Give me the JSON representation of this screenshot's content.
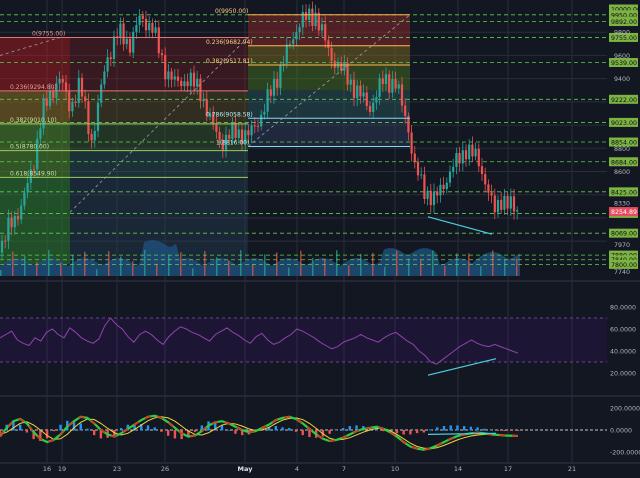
{
  "colors": {
    "background": "#131722",
    "grid": "#2a2e39",
    "candle_up": "#26a69a",
    "candle_down": "#ef5350",
    "level_line": "#5ad04c",
    "current_price": "#e84a5f",
    "fib_cyan": "#4dd0e1",
    "rsi_line": "#8e44ad",
    "macd_green": "#2ecc40",
    "macd_red": "#ff1e1e",
    "macd_yellow": "#f4d03f",
    "macd_blue": "#2196f3"
  },
  "chart_data": {
    "type": "candlestick",
    "price_axis": {
      "ticks": [
        "9800",
        "9600",
        "9400",
        "8800",
        "8600",
        "8330",
        "7970",
        "7740"
      ],
      "range": [
        7700,
        10000
      ],
      "levels": [
        {
          "label": "10000.00",
          "value": 10000
        },
        {
          "label": "9950.00",
          "value": 9950
        },
        {
          "label": "9892.00",
          "value": 9892
        },
        {
          "label": "9755.00",
          "value": 9755
        },
        {
          "label": "9539.00",
          "value": 9539
        },
        {
          "label": "9222.00",
          "value": 9222
        },
        {
          "label": "9023.00",
          "value": 9023
        },
        {
          "label": "8854.00",
          "value": 8854
        },
        {
          "label": "8684.00",
          "value": 8684
        },
        {
          "label": "8425.00",
          "value": 8425
        },
        {
          "label": "8239.00",
          "value": 8239
        },
        {
          "label": "8069.00",
          "value": 8069
        },
        {
          "label": "7880.00",
          "value": 7880
        },
        {
          "label": "7840.00",
          "value": 7840
        },
        {
          "label": "7800.00",
          "value": 7800
        }
      ],
      "current_price": "8254.89"
    },
    "fib_left": [
      {
        "label": "0(9755.00)",
        "value": 9755
      },
      {
        "label": "0.236(9294.80)",
        "value": 9294.8
      },
      {
        "label": "0.382(9010.10)",
        "value": 9010.1
      },
      {
        "label": "0.5(8780.00)",
        "value": 8780
      },
      {
        "label": "0.618(8549.90)",
        "value": 8549.9
      }
    ],
    "fib_right": [
      {
        "label": "0(9950.00)",
        "value": 9950
      },
      {
        "label": "0.236(9682.94)",
        "value": 9682.94
      },
      {
        "label": "0.382(9517.81)",
        "value": 9517.81
      },
      {
        "label": "0.786(9058.58)",
        "value": 9058.58
      },
      {
        "label": "1(8816.00)",
        "value": 8816
      }
    ],
    "x_axis": {
      "labels": [
        "16",
        "19",
        "23",
        "26",
        "May",
        "4",
        "7",
        "10",
        "14",
        "17",
        "21"
      ]
    },
    "rsi": {
      "ticks": [
        "80.0000",
        "60.0000",
        "40.0000",
        "20.0000"
      ],
      "levels": [
        70,
        30
      ],
      "values": [
        52,
        55,
        58,
        50,
        47,
        45,
        52,
        49,
        57,
        60,
        55,
        52,
        61,
        57,
        52,
        49,
        47,
        51,
        63,
        70,
        64,
        60,
        53,
        48,
        55,
        58,
        55,
        50,
        46,
        53,
        58,
        62,
        60,
        57,
        55,
        52,
        49,
        55,
        58,
        61,
        57,
        54,
        50,
        47,
        53,
        56,
        50,
        46,
        48,
        52,
        55,
        60,
        58,
        55,
        52,
        48,
        45,
        42,
        44,
        48,
        50,
        52,
        55,
        52,
        50,
        48,
        52,
        55,
        57,
        53,
        49,
        46,
        40,
        36,
        30,
        28,
        32,
        36,
        40,
        44,
        47,
        50,
        47,
        45,
        44,
        46,
        44,
        42,
        40,
        38
      ]
    },
    "macd": {
      "ticks": [
        "200.0000",
        "0.0000",
        "-200.0000"
      ],
      "macd": [
        -60,
        20,
        80,
        100,
        60,
        -20,
        -80,
        -110,
        -90,
        -40,
        30,
        80,
        120,
        110,
        60,
        0,
        -40,
        -60,
        -30,
        10,
        50,
        90,
        120,
        130,
        110,
        70,
        20,
        -30,
        -60,
        -50,
        -10,
        40,
        70,
        80,
        60,
        30,
        0,
        -20,
        -10,
        20,
        50,
        90,
        110,
        120,
        100,
        60,
        10,
        -40,
        -80,
        -100,
        -90,
        -70,
        -40,
        -10,
        10,
        20,
        30,
        10,
        -20,
        -60,
        -110,
        -150,
        -170,
        -180,
        -165,
        -140,
        -110,
        -80,
        -55,
        -40,
        -30,
        -25,
        -30,
        -40,
        -45,
        -50,
        -52,
        -54
      ],
      "signal": [
        -40,
        -20,
        20,
        60,
        75,
        45,
        0,
        -50,
        -85,
        -80,
        -40,
        20,
        70,
        100,
        95,
        60,
        15,
        -25,
        -45,
        -30,
        5,
        45,
        85,
        110,
        120,
        110,
        80,
        35,
        -10,
        -40,
        -45,
        -25,
        10,
        45,
        60,
        55,
        35,
        10,
        -5,
        0,
        25,
        60,
        90,
        105,
        110,
        95,
        60,
        15,
        -35,
        -75,
        -90,
        -85,
        -70,
        -45,
        -20,
        0,
        15,
        15,
        -5,
        -40,
        -80,
        -120,
        -150,
        -165,
        -170,
        -160,
        -140,
        -115,
        -90,
        -70,
        -55,
        -45,
        -40,
        -40,
        -43,
        -46,
        -49,
        -51
      ]
    }
  }
}
